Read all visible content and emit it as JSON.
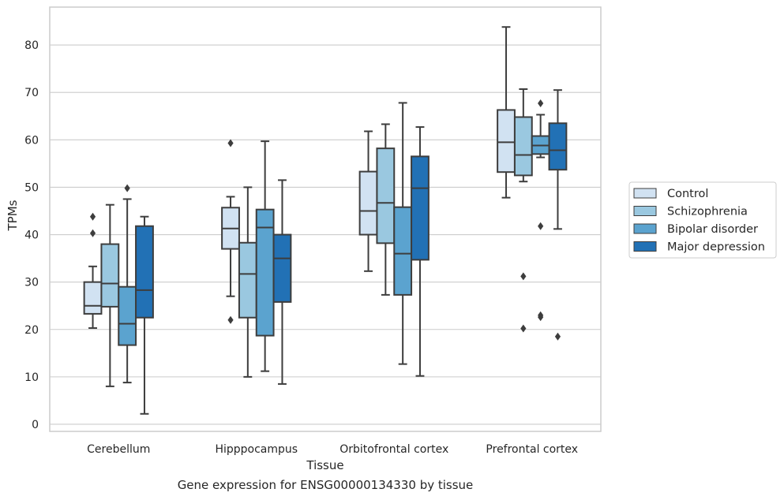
{
  "caption": "Gene expression for ENSG00000134330 by tissue",
  "chart_data": {
    "type": "boxplot",
    "title": "",
    "xlabel": "Tissue",
    "ylabel": "TPMs",
    "ylim": [
      -1.5,
      88
    ],
    "yticks": [
      0,
      10,
      20,
      30,
      40,
      50,
      60,
      70,
      80
    ],
    "grid": "horizontal",
    "legend_position": "right",
    "categories": [
      "Cerebellum",
      "Hipppocampus",
      "Orbitofrontal cortex",
      "Prefrontal cortex"
    ],
    "series": [
      {
        "name": "Control",
        "color": "#d1e2f2",
        "boxes": [
          {
            "whislo": 20.3,
            "q1": 23.3,
            "med": 25.0,
            "q3": 30.0,
            "whishi": 33.3,
            "fliers": [
              40.3,
              43.8
            ]
          },
          {
            "whislo": 27.0,
            "q1": 37.0,
            "med": 41.3,
            "q3": 45.7,
            "whishi": 48.0,
            "fliers": [
              22.0,
              59.3
            ]
          },
          {
            "whislo": 32.3,
            "q1": 40.0,
            "med": 45.0,
            "q3": 53.3,
            "whishi": 61.8,
            "fliers": []
          },
          {
            "whislo": 47.8,
            "q1": 53.2,
            "med": 59.5,
            "q3": 66.3,
            "whishi": 83.8,
            "fliers": []
          }
        ]
      },
      {
        "name": "Schizophrenia",
        "color": "#9ac8e0",
        "boxes": [
          {
            "whislo": 8.0,
            "q1": 24.8,
            "med": 29.7,
            "q3": 38.0,
            "whishi": 46.3,
            "fliers": []
          },
          {
            "whislo": 10.0,
            "q1": 22.5,
            "med": 31.7,
            "q3": 38.3,
            "whishi": 50.0,
            "fliers": []
          },
          {
            "whislo": 27.3,
            "q1": 38.2,
            "med": 46.7,
            "q3": 58.2,
            "whishi": 63.3,
            "fliers": []
          },
          {
            "whislo": 51.2,
            "q1": 52.5,
            "med": 56.8,
            "q3": 64.8,
            "whishi": 70.7,
            "fliers": [
              31.2,
              20.2
            ]
          }
        ]
      },
      {
        "name": "Bipolar disorder",
        "color": "#5ba3cf",
        "boxes": [
          {
            "whislo": 8.8,
            "q1": 16.7,
            "med": 21.2,
            "q3": 29.0,
            "whishi": 47.5,
            "fliers": [
              49.8
            ]
          },
          {
            "whislo": 11.2,
            "q1": 18.7,
            "med": 41.5,
            "q3": 45.3,
            "whishi": 59.7,
            "fliers": []
          },
          {
            "whislo": 12.7,
            "q1": 27.3,
            "med": 36.0,
            "q3": 45.8,
            "whishi": 67.8,
            "fliers": []
          },
          {
            "whislo": 56.3,
            "q1": 57.0,
            "med": 58.8,
            "q3": 60.8,
            "whishi": 65.3,
            "fliers": [
              67.7,
              41.8,
              23.0,
              22.6
            ]
          }
        ]
      },
      {
        "name": "Major depression",
        "color": "#2271b5",
        "boxes": [
          {
            "whislo": 2.2,
            "q1": 22.5,
            "med": 28.3,
            "q3": 41.8,
            "whishi": 43.8,
            "fliers": []
          },
          {
            "whislo": 8.5,
            "q1": 25.8,
            "med": 35.0,
            "q3": 40.0,
            "whishi": 51.5,
            "fliers": []
          },
          {
            "whislo": 10.2,
            "q1": 34.7,
            "med": 49.8,
            "q3": 56.5,
            "whishi": 62.7,
            "fliers": []
          },
          {
            "whislo": 41.2,
            "q1": 53.7,
            "med": 57.8,
            "q3": 63.5,
            "whishi": 70.5,
            "fliers": [
              18.5
            ]
          }
        ]
      }
    ]
  }
}
